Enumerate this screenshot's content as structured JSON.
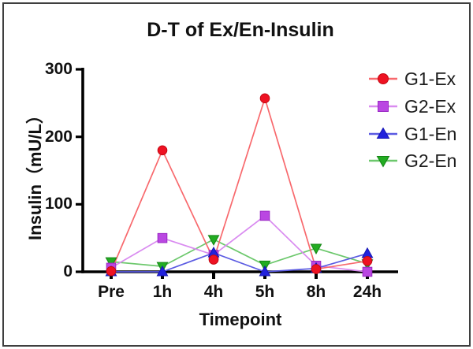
{
  "figure": {
    "border_color": "#3f3f3f",
    "background": "#ffffff",
    "text_color": "#111111"
  },
  "chart_data": {
    "type": "line",
    "title": "D-T of Ex/En-Insulin",
    "xlabel": "Timepoint",
    "ylabel": "Insulin（mU/L）",
    "categories": [
      "Pre",
      "1h",
      "4h",
      "5h",
      "8h",
      "24h"
    ],
    "yticks": [
      0,
      100,
      200,
      300
    ],
    "ylim": [
      0,
      300
    ],
    "grid": false,
    "legend_position": "top-right",
    "axis_color": "#000000",
    "series": [
      {
        "name": "G1-Ex",
        "marker": "circle",
        "color": "#ee1222",
        "edge": "#c40913",
        "line_color": "#f8696d",
        "values": [
          1,
          180,
          18,
          257,
          4,
          16
        ]
      },
      {
        "name": "G2-Ex",
        "marker": "square",
        "color": "#ba47e2",
        "edge": "#9a28c4",
        "line_color": "#d98bf0",
        "values": [
          6,
          50,
          25,
          83,
          9,
          0
        ]
      },
      {
        "name": "G1-En",
        "marker": "triangle-up",
        "color": "#2121dc",
        "edge": "#1414b2",
        "line_color": "#5a5ae2",
        "values": [
          0,
          0,
          28,
          0,
          5,
          27
        ]
      },
      {
        "name": "G2-En",
        "marker": "triangle-down",
        "color": "#22ac22",
        "edge": "#148514",
        "line_color": "#6cc86c",
        "values": [
          15,
          8,
          48,
          10,
          35,
          12
        ]
      }
    ]
  }
}
